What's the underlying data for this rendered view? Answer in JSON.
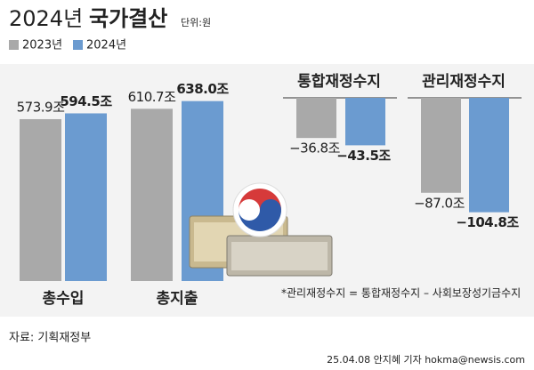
{
  "header": {
    "title_year": "2024년",
    "title": "국가결산",
    "unit": "단위:원"
  },
  "chart_data": [
    {
      "type": "bar",
      "categories": [
        "총수입",
        "총지출"
      ],
      "ylim": [
        0,
        700
      ],
      "series": [
        {
          "name": "2023년",
          "color": "#a9a9a9",
          "values": [
            573.9,
            610.7
          ],
          "value_labels": [
            "573.9조",
            "610.7조"
          ]
        },
        {
          "name": "2024년",
          "color": "#6b9bd0",
          "values": [
            594.5,
            638.0
          ],
          "value_labels": [
            "594.5조",
            "638.0조"
          ]
        }
      ]
    },
    {
      "type": "bar",
      "title": "통합재정수지",
      "ylim": [
        -110,
        0
      ],
      "series": [
        {
          "color": "#a9a9a9",
          "values": [
            -36.8
          ],
          "value_labels": [
            "−36.8조"
          ]
        },
        {
          "color": "#6b9bd0",
          "values": [
            -43.5
          ],
          "value_labels": [
            "−43.5조"
          ]
        }
      ]
    },
    {
      "type": "bar",
      "title": "관리재정수지",
      "ylim": [
        -110,
        0
      ],
      "series": [
        {
          "color": "#a9a9a9",
          "values": [
            -87.0
          ],
          "value_labels": [
            "−87.0조"
          ]
        },
        {
          "color": "#6b9bd0",
          "values": [
            -104.8
          ],
          "value_labels": [
            "−104.8조"
          ]
        }
      ]
    }
  ],
  "footer": {
    "note": "*관리재정수지 = 통합재정수지 – 사회보장성기금수지",
    "source": "자료: 기획재정부",
    "credit": "25.04.08 안지혜 기자 hokma@newsis.com"
  }
}
